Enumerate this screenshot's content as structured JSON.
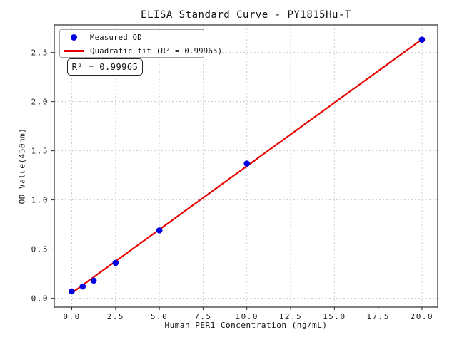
{
  "chart_data": {
    "type": "scatter",
    "title": "ELISA Standard Curve - PY1815Hu-T",
    "xlabel": "Human PER1 Concentration (ng/mL)",
    "ylabel": "OD Value(450nm)",
    "x": [
      0,
      0.625,
      1.25,
      2.5,
      5,
      10,
      20
    ],
    "y": [
      0.07,
      0.12,
      0.18,
      0.36,
      0.69,
      1.37,
      2.63
    ],
    "series": [
      {
        "name": "Measured OD",
        "type": "scatter",
        "color": "#0000e0",
        "marker": "circle"
      },
      {
        "name": "Quadratic fit (R² = 0.99965)",
        "type": "line",
        "color": "#e60000"
      }
    ],
    "fit": {
      "kind": "quadratic",
      "coefficients": {
        "a": -1e-06,
        "b": 0.129,
        "c": 0.054
      },
      "r_squared": 0.99965,
      "x_range": [
        0,
        20
      ]
    },
    "x_ticks": {
      "values": [
        0,
        2.5,
        5,
        7.5,
        10,
        12.5,
        15,
        17.5,
        20
      ],
      "labels": [
        "0.0",
        "2.5",
        "5.0",
        "7.5",
        "10.0",
        "12.5",
        "15.0",
        "17.5",
        "20.0"
      ]
    },
    "y_ticks": {
      "values": [
        0,
        0.5,
        1,
        1.5,
        2,
        2.5
      ],
      "labels": [
        "0.0",
        "0.5",
        "1.0",
        "1.5",
        "2.0",
        "2.5"
      ]
    },
    "xlim": [
      -1,
      20.9
    ],
    "ylim": [
      -0.09,
      2.78
    ],
    "grid": true,
    "legend_position": "upper left"
  },
  "legend": {
    "items": [
      {
        "label": "Measured OD",
        "marker": "dot",
        "color": "#0000e0"
      },
      {
        "label": "Quadratic fit (R² = 0.99965)",
        "marker": "line",
        "color": "#e60000"
      }
    ]
  },
  "annotation": {
    "r_squared_label": "R² = 0.99965"
  }
}
